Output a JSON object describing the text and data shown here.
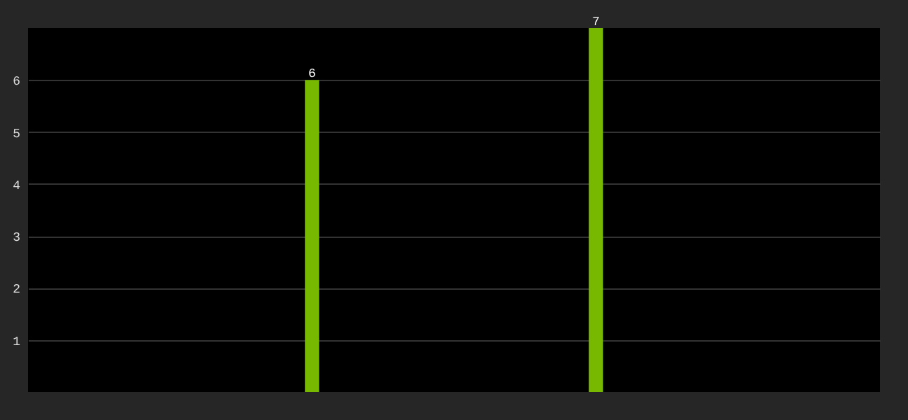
{
  "chart_data": {
    "type": "bar",
    "categories": [
      null,
      null
    ],
    "values": [
      6,
      7
    ],
    "color": "#76b900",
    "ylim": [
      0,
      7
    ],
    "yticks": [
      1,
      2,
      3,
      4,
      5,
      6
    ],
    "grid": "y",
    "data_labels": true
  }
}
